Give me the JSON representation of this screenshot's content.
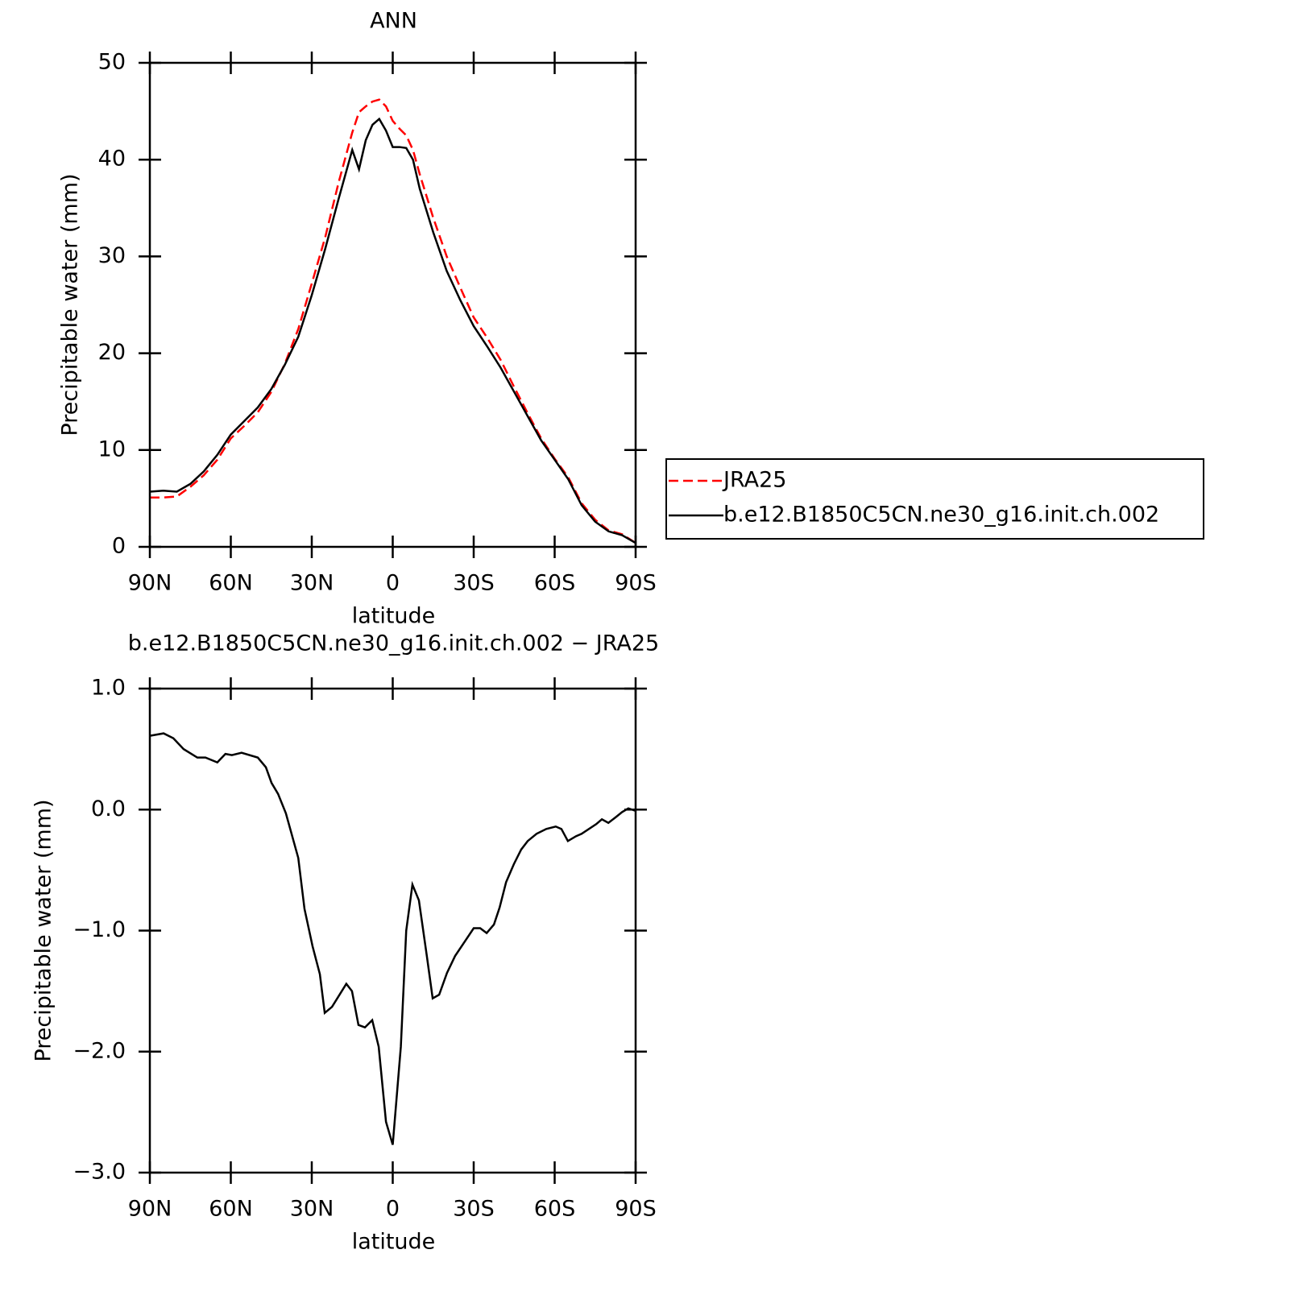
{
  "chart_data": [
    {
      "type": "line",
      "title": "ANN",
      "x_label": "latitude",
      "y_label": "Precipitable water (mm)",
      "x": [
        90,
        85,
        80,
        75,
        70,
        65,
        60,
        55,
        50,
        45,
        40,
        35,
        30,
        25,
        20,
        15,
        12.5,
        10,
        7.5,
        5,
        2.5,
        0,
        -2.5,
        -5,
        -7.5,
        -10,
        -15,
        -20,
        -25,
        -30,
        -35,
        -40,
        -45,
        -50,
        -55,
        -60,
        -65,
        -70,
        -75,
        -80,
        -85,
        -90
      ],
      "series": [
        {
          "name": "JRA25",
          "color": "#ff0000",
          "dash": true,
          "values": [
            5.1,
            5.1,
            5.2,
            6.2,
            7.4,
            9.0,
            11.2,
            12.5,
            13.9,
            16.0,
            18.9,
            22.5,
            27.2,
            32.0,
            37.7,
            42.8,
            44.9,
            45.5,
            46.0,
            46.2,
            45.5,
            44.0,
            43.2,
            42.5,
            41.0,
            38.5,
            34.0,
            30.0,
            26.8,
            23.7,
            21.6,
            19.3,
            16.5,
            13.8,
            11.2,
            9.1,
            7.2,
            4.5,
            2.8,
            1.7,
            1.3,
            0.4
          ]
        },
        {
          "name": "b.e12.B1850C5CN.ne30_g16.init.ch.002",
          "color": "#000000",
          "dash": false,
          "values": [
            5.7,
            5.8,
            5.7,
            6.5,
            7.8,
            9.5,
            11.6,
            13.0,
            14.4,
            16.3,
            18.8,
            21.7,
            26.0,
            30.8,
            36.0,
            41.0,
            39.0,
            42.0,
            43.6,
            44.2,
            43.0,
            41.3,
            41.3,
            41.2,
            40.0,
            37.0,
            32.5,
            28.5,
            25.5,
            22.8,
            20.7,
            18.5,
            16.0,
            13.5,
            11.0,
            9.0,
            7.0,
            4.3,
            2.6,
            1.6,
            1.2,
            0.4
          ]
        }
      ],
      "xlim": [
        90,
        -90
      ],
      "xticks": [
        {
          "value": 90,
          "label": "90N"
        },
        {
          "value": 60,
          "label": "60N"
        },
        {
          "value": 30,
          "label": "30N"
        },
        0,
        {
          "value": -30,
          "label": "30S"
        },
        {
          "value": -60,
          "label": "60S"
        },
        {
          "value": -90,
          "label": "90S"
        }
      ],
      "ylim": [
        0,
        50
      ],
      "yticks": [
        0,
        10,
        20,
        30,
        40,
        50
      ],
      "legend": "right"
    },
    {
      "type": "line",
      "title": "b.e12.B1850C5CN.ne30_g16.init.ch.002 − JRA25",
      "x_label": "latitude",
      "y_label": "Precipitable water (mm)",
      "x": [
        90,
        84.9,
        81.3,
        77.5,
        72.4,
        69.4,
        65,
        62,
        59.6,
        56,
        50,
        47,
        44.9,
        42.5,
        39.6,
        35,
        32.7,
        29.7,
        27,
        25.2,
        22.5,
        17.2,
        15.1,
        12.7,
        10.3,
        7.6,
        5.2,
        2.5,
        0,
        -3,
        -5,
        -7.3,
        -9.7,
        -12.7,
        -14.8,
        -17.2,
        -20.1,
        -23.1,
        -27,
        -30,
        -32.4,
        -34.8,
        -37.5,
        -39.6,
        -42,
        -44.9,
        -47.6,
        -50,
        -53.3,
        -56.9,
        -60.4,
        -62.5,
        -64.9,
        -67.9,
        -70,
        -75.4,
        -77.5,
        -79.9,
        -82.8,
        -85,
        -87.3,
        -90
      ],
      "series": [
        {
          "color": "#000000",
          "dash": false,
          "values": [
            0.61,
            0.63,
            0.59,
            0.5,
            0.43,
            0.43,
            0.39,
            0.46,
            0.45,
            0.47,
            0.43,
            0.35,
            0.22,
            0.13,
            -0.03,
            -0.4,
            -0.82,
            -1.13,
            -1.36,
            -1.68,
            -1.63,
            -1.44,
            -1.5,
            -1.78,
            -1.8,
            -1.74,
            -1.96,
            -2.58,
            -2.77,
            -1.96,
            -1.0,
            -0.62,
            -0.75,
            -1.22,
            -1.56,
            -1.53,
            -1.35,
            -1.21,
            -1.08,
            -0.98,
            -0.98,
            -1.02,
            -0.95,
            -0.81,
            -0.6,
            -0.45,
            -0.33,
            -0.26,
            -0.2,
            -0.16,
            -0.14,
            -0.16,
            -0.26,
            -0.22,
            -0.2,
            -0.12,
            -0.08,
            -0.11,
            -0.06,
            -0.02,
            0.01,
            -0.01
          ]
        }
      ],
      "xlim": [
        90,
        -90
      ],
      "xticks": [
        {
          "value": 90,
          "label": "90N"
        },
        {
          "value": 60,
          "label": "60N"
        },
        {
          "value": 30,
          "label": "30N"
        },
        0,
        {
          "value": -30,
          "label": "30S"
        },
        {
          "value": -60,
          "label": "60S"
        },
        {
          "value": -90,
          "label": "90S"
        }
      ],
      "ylim": [
        -3,
        1
      ],
      "yticks": [
        {
          "value": -3,
          "label": "−3.0"
        },
        {
          "value": -2,
          "label": "−2.0"
        },
        {
          "value": -1,
          "label": "−1.0"
        },
        {
          "value": 0,
          "label": "0.0"
        },
        {
          "value": 1,
          "label": "1.0"
        }
      ]
    }
  ]
}
